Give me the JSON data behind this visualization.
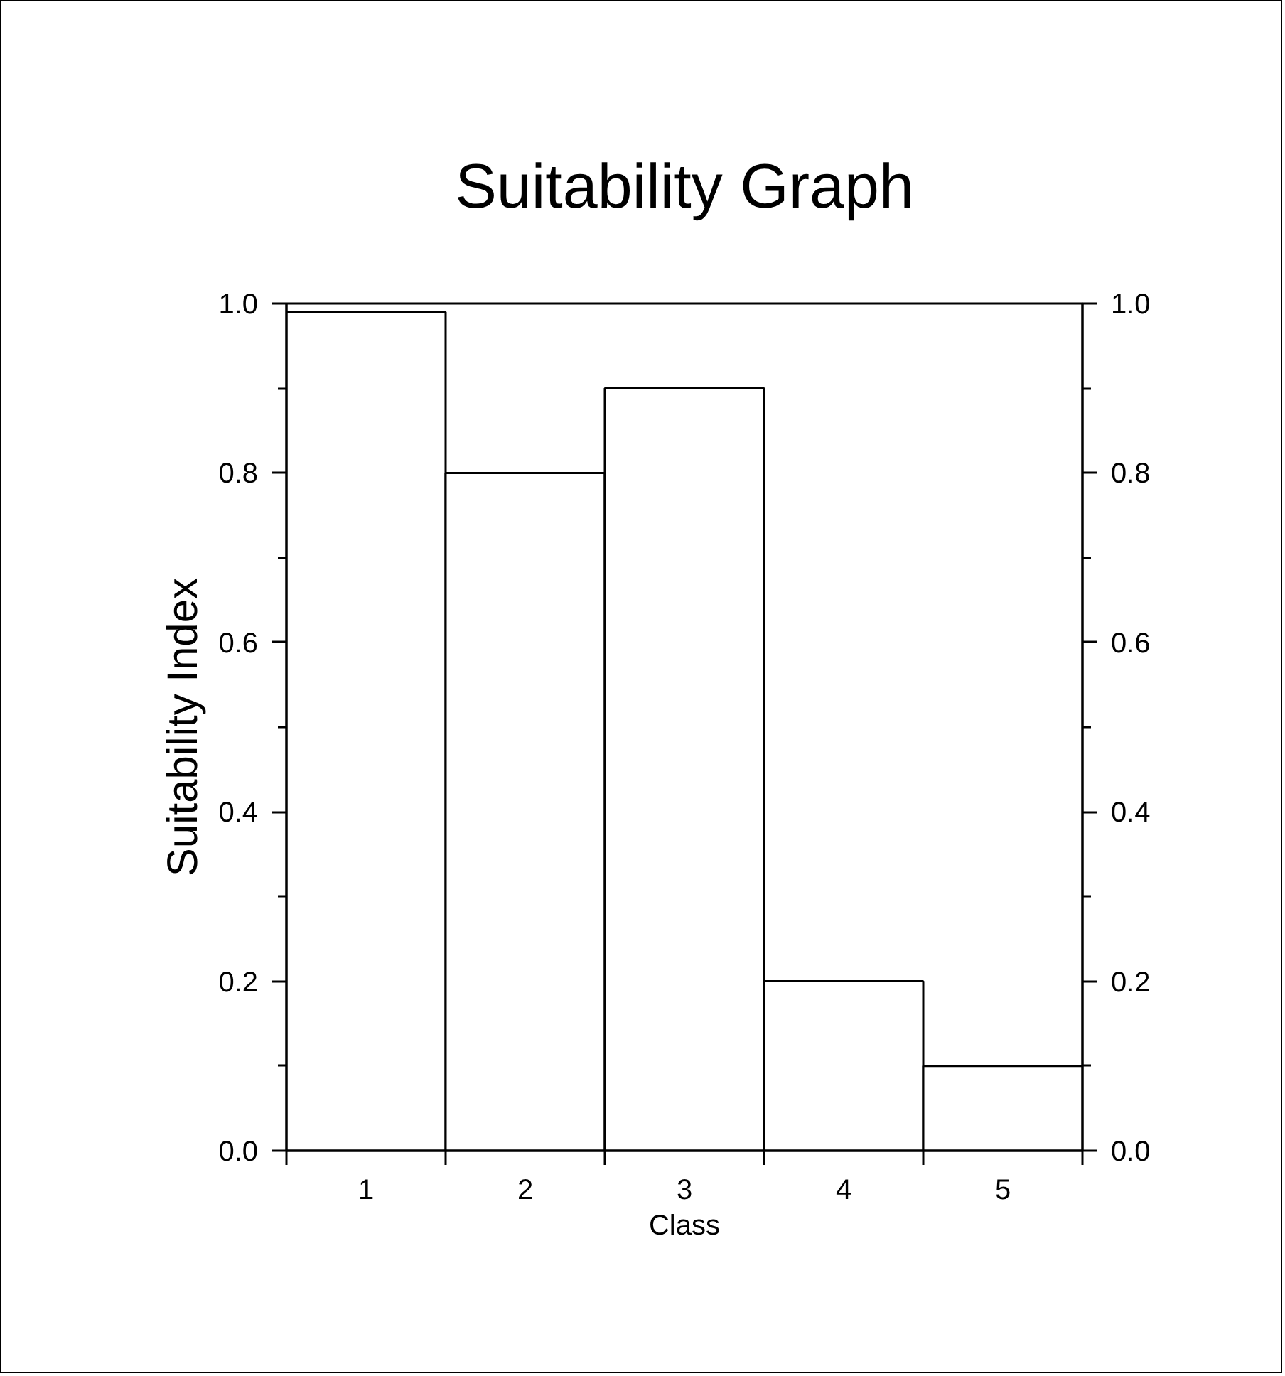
{
  "chart_data": {
    "type": "bar",
    "title": "Suitability Graph",
    "xlabel": "Class",
    "ylabel": "Suitability Index",
    "categories": [
      "1",
      "2",
      "3",
      "4",
      "5"
    ],
    "values": [
      0.99,
      0.8,
      0.9,
      0.2,
      0.1
    ],
    "color": "#ffffff",
    "ylim": [
      0,
      1
    ],
    "yticks": [
      {
        "value": 0,
        "label": "0.0"
      },
      {
        "value": 0.1,
        "label": null
      },
      0.2,
      {
        "value": 0.3,
        "label": null
      },
      0.4,
      {
        "value": 0.5,
        "label": null
      },
      0.6,
      {
        "value": 0.7,
        "label": null
      },
      0.8,
      {
        "value": 0.9,
        "label": null
      },
      {
        "value": 1,
        "label": "1.0"
      }
    ],
    "y2lim": [
      0,
      1
    ],
    "y2ticks": [
      {
        "value": 0,
        "label": "0.0"
      },
      {
        "value": 0.1,
        "label": null
      },
      0.2,
      {
        "value": 0.3,
        "label": null
      },
      0.4,
      {
        "value": 0.5,
        "label": null
      },
      0.6,
      {
        "value": 0.7,
        "label": null
      },
      0.8,
      {
        "value": 0.9,
        "label": null
      },
      {
        "value": 1,
        "label": "1.0"
      }
    ],
    "grid": false
  }
}
